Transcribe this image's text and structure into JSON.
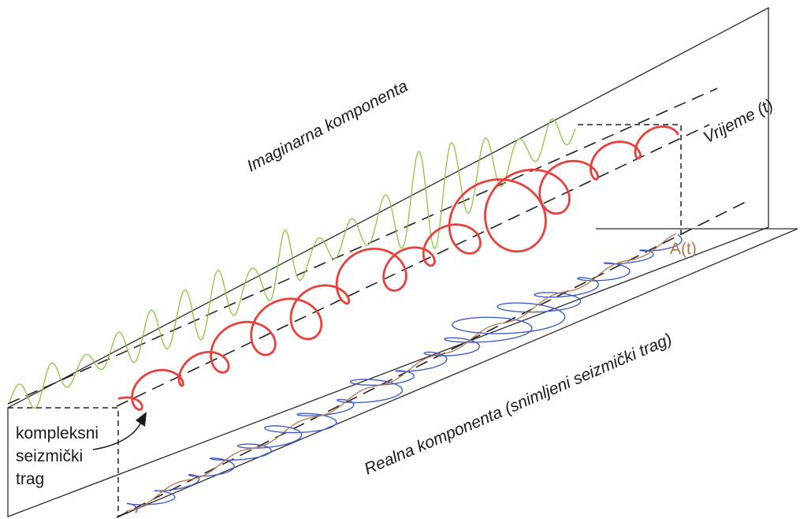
{
  "labels": {
    "imaginary_plane": "Imaginarna komponenta",
    "time_axis": "Vrijeme (t)",
    "amplitude": "A(t)",
    "real_plane": "Realna komponenta (snimljeni seizmički trag)",
    "complex_trace_line1": "kompleksni",
    "complex_trace_line2": "seizmički",
    "complex_trace_line3": "trag"
  },
  "colors": {
    "imaginary_trace": "#8cc43f",
    "complex_trace": "#e8413c",
    "real_trace": "#3f5fc8",
    "envelope": "#b8734a",
    "frame": "#2b2b2b"
  }
}
